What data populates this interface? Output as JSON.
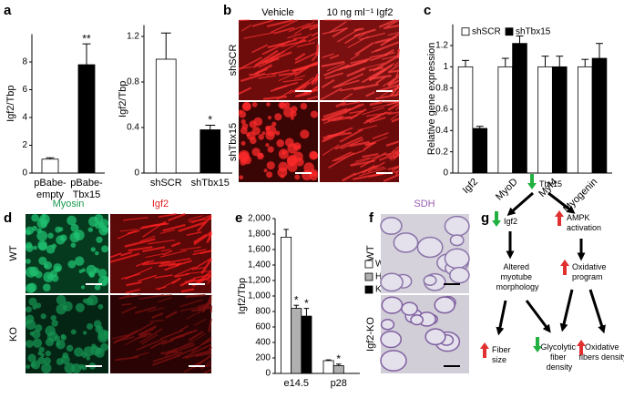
{
  "panel_labels": [
    "a",
    "b",
    "c",
    "d",
    "e",
    "f",
    "g"
  ],
  "chart_data": [
    {
      "type": "bar",
      "y_label": "Igf2/Tbp",
      "categories": [
        "pBabe-empty",
        "pBabe-Tbx15"
      ],
      "values": [
        1.0,
        7.8
      ],
      "errors": [
        0.1,
        1.5
      ],
      "colors": [
        "#ffffff",
        "#000000"
      ],
      "significance": [
        null,
        "**"
      ],
      "ylim": [
        0,
        10
      ],
      "yticks": [
        0,
        2,
        4,
        6,
        8
      ]
    },
    {
      "type": "bar",
      "y_label": "Igf2/Tbp",
      "categories": [
        "shSCR",
        "shTbx15"
      ],
      "values": [
        1.0,
        0.38
      ],
      "errors": [
        0.23,
        0.04
      ],
      "colors": [
        "#ffffff",
        "#000000"
      ],
      "significance": [
        null,
        "*"
      ],
      "ylim": [
        0,
        1.3
      ],
      "yticks": [
        0,
        0.4,
        0.8,
        1.2
      ]
    },
    {
      "type": "bar",
      "y_label": "Relative gene expression",
      "categories": [
        "Igf2",
        "MyoD",
        "Myf4",
        "Myogenin"
      ],
      "series": [
        {
          "name": "shSCR",
          "color": "#ffffff",
          "values": [
            1.0,
            1.0,
            1.0,
            1.0
          ],
          "errors": [
            0.06,
            0.08,
            0.1,
            0.07
          ]
        },
        {
          "name": "shTbx15",
          "color": "#000000",
          "values": [
            0.42,
            1.22,
            1.0,
            1.08
          ],
          "errors": [
            0.02,
            0.07,
            0.1,
            0.14
          ]
        }
      ],
      "ylim": [
        0,
        1.4
      ],
      "yticks": [
        0,
        0.2,
        0.4,
        0.6,
        0.8,
        1.0,
        1.2
      ],
      "legend": "top"
    },
    {
      "type": "bar",
      "y_label": "Igf2/Tbp",
      "categories": [
        "e14.5",
        "p28"
      ],
      "series": [
        {
          "name": "WT",
          "color": "#ffffff",
          "values": [
            1760,
            165
          ],
          "errors": [
            100,
            10
          ],
          "significance": [
            null,
            null
          ]
        },
        {
          "name": "Het",
          "color": "#b0b0b0",
          "values": [
            840,
            100
          ],
          "errors": [
            40,
            20
          ],
          "significance": [
            "*",
            "*"
          ]
        },
        {
          "name": "KO",
          "color": "#000000",
          "values": [
            740,
            null
          ],
          "errors": [
            100,
            null
          ],
          "significance": [
            "*",
            null
          ]
        }
      ],
      "ylim": [
        0,
        2000
      ],
      "yticks": [
        0,
        200,
        400,
        600,
        800,
        {
          "value": 1000,
          "label": "1,000"
        },
        {
          "value": 1200,
          "label": "1,200"
        },
        {
          "value": 1400,
          "label": "1,400"
        },
        {
          "value": 1600,
          "label": "1,600"
        },
        {
          "value": 1800,
          "label": "1,800"
        },
        {
          "value": 2000,
          "label": "2,000"
        }
      ],
      "legend": "right"
    }
  ],
  "micrographs": {
    "b": {
      "columns": [
        "Vehicle",
        "10 ng ml⁻¹ Igf2"
      ],
      "rows": [
        "shSCR",
        "shTbx15"
      ]
    },
    "d": {
      "columns": [
        "Myosin",
        "Igf2"
      ],
      "rows": [
        "WT",
        "KO"
      ]
    },
    "f": {
      "columns": [
        "SDH"
      ],
      "rows": [
        "WT",
        "Igf2-KO"
      ]
    }
  },
  "diagram": {
    "nodes": [
      {
        "label": "Tbx15"
      },
      {
        "label": "Igf2"
      },
      {
        "label": "AMPK activation"
      },
      {
        "label": "Altered myotube morphology"
      },
      {
        "label": "Oxidative program"
      },
      {
        "label": "Fiber size"
      },
      {
        "label": "Glycolytic fiber density"
      },
      {
        "label": "Oxidative fibers density"
      }
    ]
  }
}
